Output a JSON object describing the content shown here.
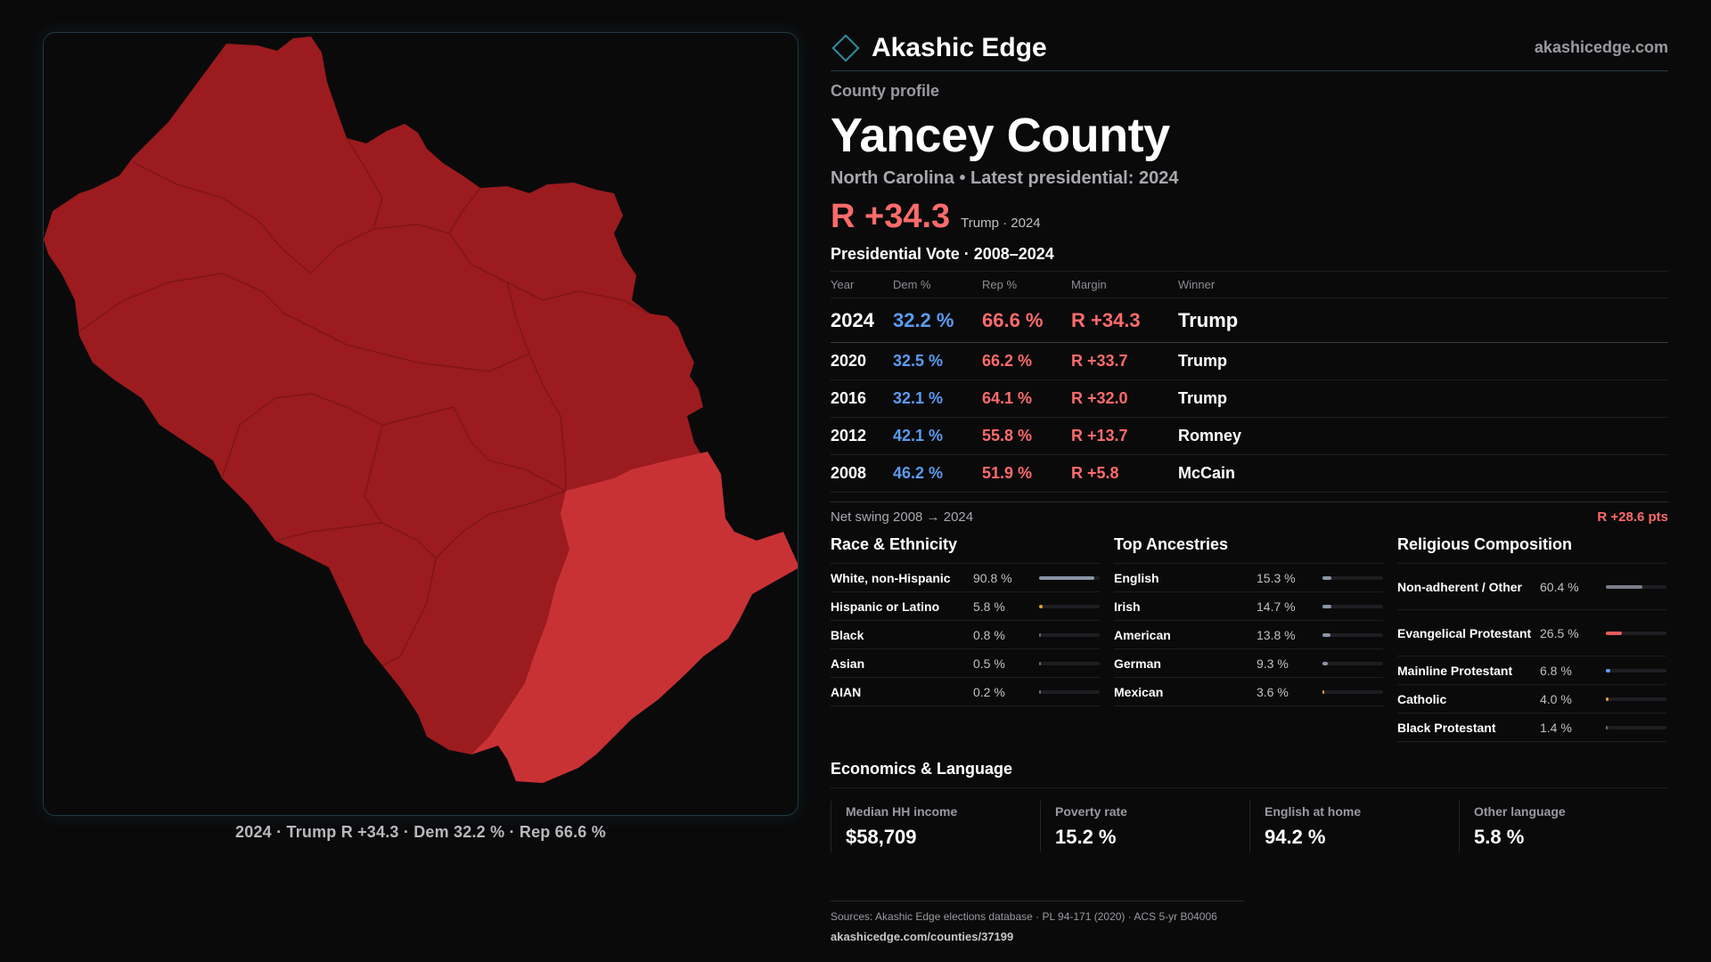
{
  "map": {
    "caption": "2024 · Trump R +34.3 · Dem 32.2 % · Rep 66.6 %",
    "colors": {
      "dark": "#9b1b1e",
      "light": "#c93235",
      "border": "#7e1518"
    }
  },
  "header": {
    "brand": "Akashic Edge",
    "url": "akashicedge.com"
  },
  "profile": {
    "eyebrow": "County profile",
    "title": "Yancey County",
    "subtitle": "North Carolina • Latest presidential: 2024",
    "margin": "R +34.3",
    "margin_note": "Trump · 2024"
  },
  "votes": {
    "title": "Presidential Vote · 2008–2024",
    "headers": {
      "year": "Year",
      "dem": "Dem %",
      "rep": "Rep %",
      "margin": "Margin",
      "winner": "Winner"
    },
    "rows": [
      {
        "year": "2024",
        "dem": "32.2 %",
        "rep": "66.6 %",
        "margin": "R +34.3",
        "winner": "Trump"
      },
      {
        "year": "2020",
        "dem": "32.5 %",
        "rep": "66.2 %",
        "margin": "R +33.7",
        "winner": "Trump"
      },
      {
        "year": "2016",
        "dem": "32.1 %",
        "rep": "64.1 %",
        "margin": "R +32.0",
        "winner": "Trump"
      },
      {
        "year": "2012",
        "dem": "42.1 %",
        "rep": "55.8 %",
        "margin": "R +13.7",
        "winner": "Romney"
      },
      {
        "year": "2008",
        "dem": "46.2 %",
        "rep": "51.9 %",
        "margin": "R +5.8",
        "winner": "McCain"
      }
    ],
    "swing_label": "Net swing 2008 → 2024",
    "swing_value": "R +28.6 pts"
  },
  "race": {
    "title": "Race & Ethnicity",
    "items": [
      {
        "label": "White, non-Hispanic",
        "value": "90.8 %",
        "pct": 90.8,
        "color": "#8a94a6"
      },
      {
        "label": "Hispanic or Latino",
        "value": "5.8 %",
        "pct": 5.8,
        "color": "#e0a030"
      },
      {
        "label": "Black",
        "value": "0.8 %",
        "pct": 0.8,
        "color": "#6a6a70"
      },
      {
        "label": "Asian",
        "value": "0.5 %",
        "pct": 0.5,
        "color": "#6a6a70"
      },
      {
        "label": "AIAN",
        "value": "0.2 %",
        "pct": 0.2,
        "color": "#6a6a70"
      }
    ]
  },
  "ancestry": {
    "title": "Top Ancestries",
    "items": [
      {
        "label": "English",
        "value": "15.3 %",
        "pct": 15.3,
        "color": "#8a94a6"
      },
      {
        "label": "Irish",
        "value": "14.7 %",
        "pct": 14.7,
        "color": "#8a94a6"
      },
      {
        "label": "American",
        "value": "13.8 %",
        "pct": 13.8,
        "color": "#8a94a6"
      },
      {
        "label": "German",
        "value": "9.3 %",
        "pct": 9.3,
        "color": "#8a94a6"
      },
      {
        "label": "Mexican",
        "value": "3.6 %",
        "pct": 3.6,
        "color": "#e0a030"
      }
    ]
  },
  "religion": {
    "title": "Religious Composition",
    "items": [
      {
        "label": "Non-adherent / Other",
        "value": "60.4 %",
        "pct": 60.4,
        "color": "#7a7f8a",
        "tall": true
      },
      {
        "label": "Evangelical Protestant",
        "value": "26.5 %",
        "pct": 26.5,
        "color": "#e85c5c",
        "tall": true
      },
      {
        "label": "Mainline Protestant",
        "value": "6.8 %",
        "pct": 6.8,
        "color": "#5b9cf0",
        "tall": false
      },
      {
        "label": "Catholic",
        "value": "4.0 %",
        "pct": 4.0,
        "color": "#e0a030",
        "tall": false
      },
      {
        "label": "Black Protestant",
        "value": "1.4 %",
        "pct": 1.4,
        "color": "#6a6a70",
        "tall": false
      }
    ]
  },
  "economics": {
    "title": "Economics & Language",
    "items": [
      {
        "label": "Median HH income",
        "value": "$58,709"
      },
      {
        "label": "Poverty rate",
        "value": "15.2 %"
      },
      {
        "label": "English at home",
        "value": "94.2 %"
      },
      {
        "label": "Other language",
        "value": "5.8 %"
      }
    ]
  },
  "sources": {
    "line1": "Sources: Akashic Edge elections database · PL 94-171 (2020) · ACS 5-yr B04006",
    "line2": "akashicedge.com/counties/37199"
  }
}
